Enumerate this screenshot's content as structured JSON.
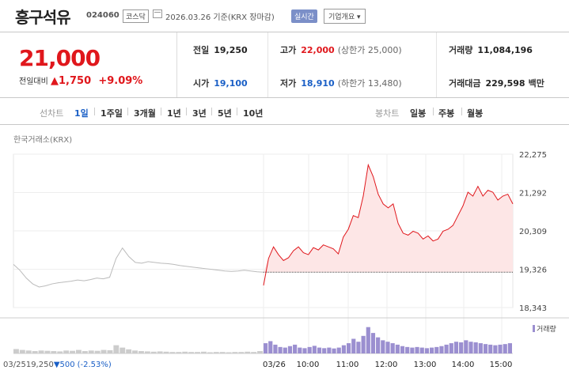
{
  "header": {
    "stock_name": "흥구석유",
    "stock_code": "024060",
    "market_badge": "코스닥",
    "date_text": "2026.03.26  기준(KRX 장마감)",
    "realtime_badge": "실시간",
    "company_button": "기업개요 ▾"
  },
  "quote": {
    "price": "21,000",
    "change_label": "전일대비",
    "change_arrow": "▲",
    "change_amount": "1,750",
    "change_percent": "+9.09%",
    "prev_close_label": "전일",
    "prev_close": "19,250",
    "open_label": "시가",
    "open": "19,100",
    "high_label": "고가",
    "high": "22,000",
    "high_limit": "(상한가 25,000)",
    "low_label": "저가",
    "low": "18,910",
    "low_limit": "(하한가 13,480)",
    "volume_label": "거래량",
    "volume": "11,084,196",
    "amount_label": "거래대금",
    "amount": "229,598",
    "amount_unit": "백만"
  },
  "periods": {
    "line_label": "선차트",
    "line_items": [
      "1일",
      "1주일",
      "3개월",
      "1년",
      "3년",
      "5년",
      "10년"
    ],
    "candle_label": "봉차트",
    "candle_items": [
      "일봉",
      "주봉",
      "월봉"
    ]
  },
  "chart_source": "한국거래소(KRX)",
  "volume_legend": "거래량",
  "colors": {
    "up": "#e0171c",
    "down": "#1a5fc6",
    "prev_line": "#bbbbbb",
    "fill": "#fde6e6",
    "volume": "#9b8fd0"
  },
  "chart_data": {
    "type": "line",
    "y_ticks": [
      "22,275",
      "21,292",
      "20,309",
      "19,326",
      "18,343"
    ],
    "ylim": [
      18343,
      22275
    ],
    "x_ticks": [
      "03/26",
      "10:00",
      "11:00",
      "12:00",
      "13:00",
      "14:00",
      "15:00"
    ],
    "prev_day_label": "03/25",
    "prev_day_close": "19,250",
    "prev_day_change_arrow": "▼",
    "prev_day_change": "500",
    "prev_day_change_percent": "(-2.53%)",
    "baseline": 19250,
    "prev_day_series": [
      19450,
      19300,
      19100,
      18950,
      18870,
      18900,
      18950,
      18980,
      19000,
      19020,
      19050,
      19030,
      19060,
      19100,
      19080,
      19120,
      19600,
      19870,
      19650,
      19500,
      19480,
      19520,
      19500,
      19480,
      19470,
      19450,
      19420,
      19400,
      19380,
      19360,
      19340,
      19320,
      19300,
      19280,
      19270,
      19280,
      19300,
      19280,
      19260,
      19250
    ],
    "today_series": [
      18910,
      19600,
      19900,
      19700,
      19550,
      19620,
      19800,
      19900,
      19750,
      19700,
      19880,
      19820,
      19950,
      19900,
      19850,
      19720,
      20150,
      20350,
      20700,
      20650,
      21200,
      22000,
      21700,
      21250,
      21000,
      20900,
      21000,
      20500,
      20250,
      20200,
      20300,
      20250,
      20100,
      20180,
      20050,
      20100,
      20300,
      20350,
      20450,
      20700,
      20950,
      21300,
      21200,
      21450,
      21200,
      21350,
      21300,
      21100,
      21200,
      21250,
      21000
    ],
    "prev_day_volume": [
      0.15,
      0.12,
      0.1,
      0.08,
      0.1,
      0.09,
      0.08,
      0.07,
      0.1,
      0.09,
      0.12,
      0.08,
      0.1,
      0.09,
      0.12,
      0.11,
      0.28,
      0.2,
      0.14,
      0.1,
      0.08,
      0.07,
      0.06,
      0.07,
      0.06,
      0.05,
      0.05,
      0.06,
      0.05,
      0.05,
      0.06,
      0.04,
      0.05,
      0.05,
      0.04,
      0.05,
      0.05,
      0.06,
      0.05,
      0.08
    ],
    "today_volume": [
      0.35,
      0.42,
      0.3,
      0.22,
      0.2,
      0.25,
      0.3,
      0.2,
      0.18,
      0.22,
      0.26,
      0.2,
      0.18,
      0.2,
      0.17,
      0.2,
      0.28,
      0.35,
      0.5,
      0.4,
      0.6,
      0.9,
      0.7,
      0.55,
      0.45,
      0.4,
      0.35,
      0.3,
      0.25,
      0.22,
      0.2,
      0.22,
      0.2,
      0.18,
      0.2,
      0.22,
      0.25,
      0.3,
      0.35,
      0.4,
      0.38,
      0.45,
      0.4,
      0.38,
      0.35,
      0.32,
      0.3,
      0.28,
      0.3,
      0.32,
      0.35
    ]
  }
}
